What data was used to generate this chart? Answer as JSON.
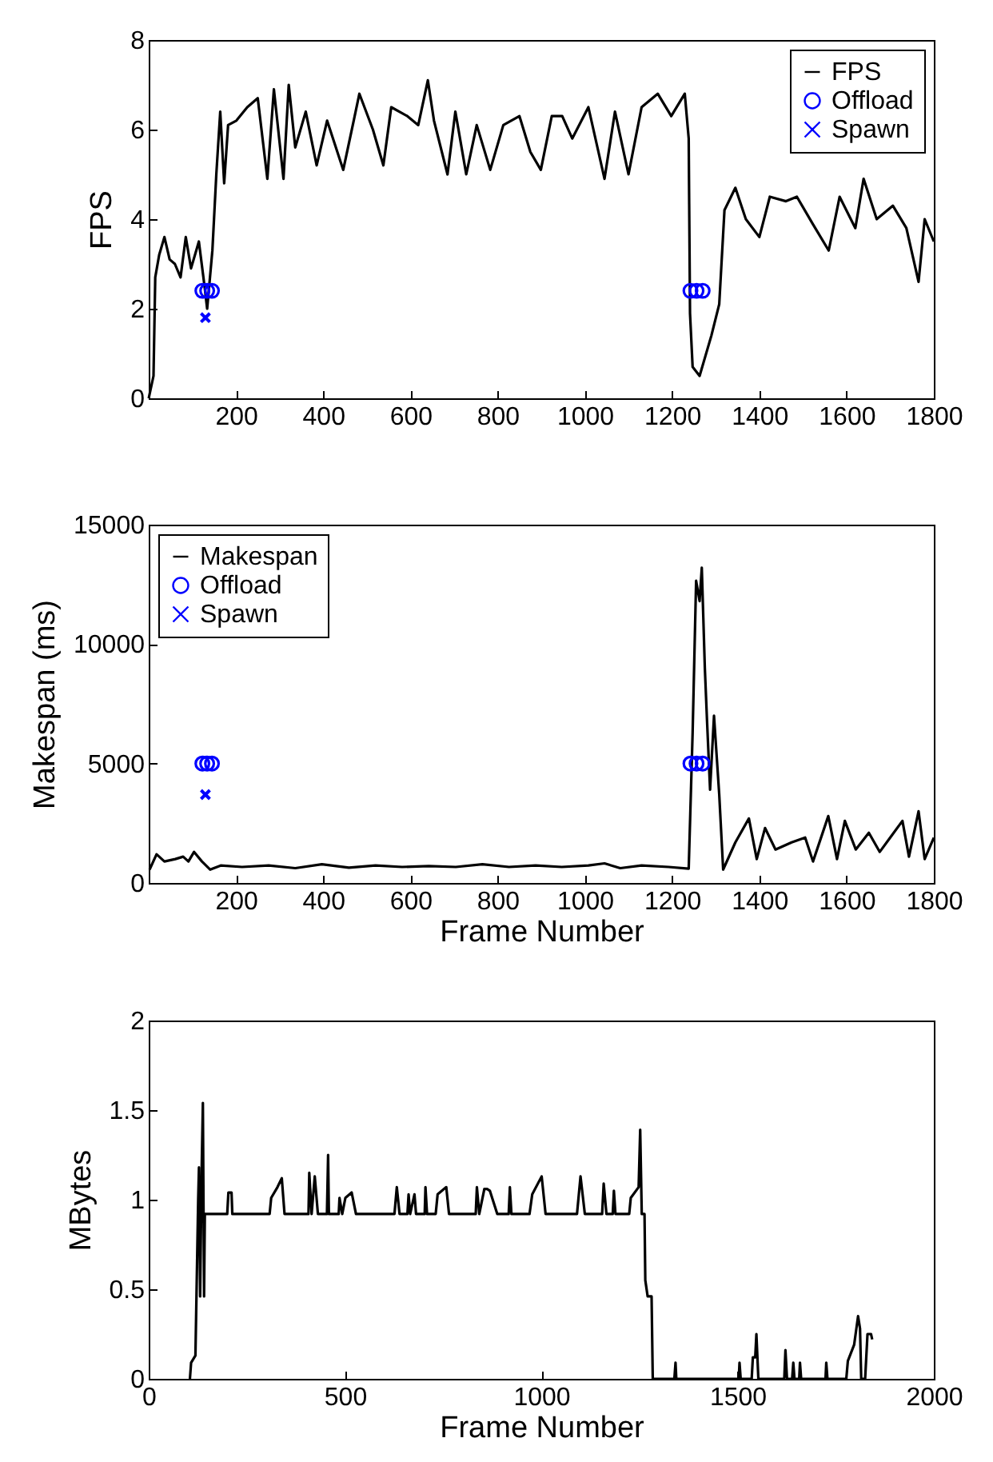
{
  "chart_data": [
    {
      "type": "line",
      "ylabel": "FPS",
      "xlim": [
        0,
        1800
      ],
      "xticks": [
        200,
        400,
        600,
        800,
        1000,
        1200,
        1400,
        1600,
        1800
      ],
      "ylim": [
        0,
        8
      ],
      "yticks": [
        0,
        2,
        4,
        6,
        8
      ],
      "legend": "top right",
      "grid": false,
      "series": [
        {
          "name": "FPS",
          "color": "#000000",
          "type": "line",
          "marker": "none",
          "x": [
            0,
            11,
            15,
            24,
            36,
            48,
            60,
            73,
            85,
            97,
            115,
            128,
            134,
            146,
            155,
            164,
            173,
            182,
            201,
            226,
            250,
            272,
            287,
            309,
            321,
            336,
            360,
            385,
            409,
            446,
            470,
            483,
            514,
            538,
            556,
            593,
            618,
            640,
            654,
            685,
            703,
            728,
            752,
            783,
            813,
            850,
            875,
            899,
            924,
            948,
            971,
            1008,
            1045,
            1069,
            1100,
            1130,
            1167,
            1198,
            1229,
            1238,
            1241,
            1247,
            1263,
            1290,
            1308,
            1320,
            1345,
            1369,
            1400,
            1424,
            1461,
            1486,
            1522,
            1559,
            1584,
            1620,
            1639,
            1669,
            1706,
            1737,
            1765,
            1779,
            1800
          ],
          "values": [
            0,
            0.5,
            2.7,
            3.2,
            3.6,
            3.1,
            3.0,
            2.7,
            3.6,
            2.9,
            3.5,
            2.5,
            2.0,
            3.3,
            5.0,
            6.4,
            4.8,
            6.1,
            6.2,
            6.5,
            6.7,
            4.9,
            6.9,
            4.9,
            7.0,
            5.6,
            6.4,
            5.2,
            6.2,
            5.1,
            6.2,
            6.8,
            6.0,
            5.2,
            6.5,
            6.3,
            6.1,
            7.1,
            6.2,
            5.0,
            6.4,
            5.0,
            6.1,
            5.1,
            6.1,
            6.3,
            5.5,
            5.1,
            6.3,
            6.3,
            5.8,
            6.5,
            4.9,
            6.4,
            5.0,
            6.5,
            6.8,
            6.3,
            6.8,
            5.8,
            1.9,
            0.7,
            0.5,
            1.4,
            2.1,
            4.2,
            4.7,
            4.0,
            3.6,
            4.5,
            4.4,
            4.5,
            3.9,
            3.3,
            4.5,
            3.8,
            4.9,
            4.0,
            4.3,
            3.8,
            2.6,
            4.0,
            3.5
          ]
        },
        {
          "name": "Offload",
          "color": "#0000ff",
          "type": "scatter",
          "marker": "circle",
          "x": [
            123,
            134,
            145,
            1242,
            1256,
            1270
          ],
          "values": [
            2.4,
            2.4,
            2.4,
            2.4,
            2.4,
            2.4
          ]
        },
        {
          "name": "Spawn",
          "color": "#0000ff",
          "type": "scatter",
          "marker": "cross",
          "x": [
            130
          ],
          "values": [
            1.8
          ]
        }
      ]
    },
    {
      "type": "line",
      "ylabel": "Makespan (ms)",
      "xlabel": "Frame Number",
      "xlim": [
        0,
        1800
      ],
      "xticks": [
        200,
        400,
        600,
        800,
        1000,
        1200,
        1400,
        1600,
        1800
      ],
      "ylim": [
        0,
        15000
      ],
      "yticks": [
        0,
        5000,
        10000,
        15000
      ],
      "legend": "top left",
      "grid": false,
      "series": [
        {
          "name": "Makespan",
          "color": "#000000",
          "type": "line",
          "marker": "none",
          "x": [
            2,
            18,
            36,
            61,
            79,
            91,
            104,
            122,
            141,
            165,
            214,
            275,
            336,
            397,
            459,
            520,
            581,
            642,
            704,
            765,
            826,
            887,
            947,
            1008,
            1045,
            1081,
            1130,
            1192,
            1238,
            1247,
            1255,
            1263,
            1268,
            1275,
            1280,
            1287,
            1296,
            1308,
            1317,
            1345,
            1376,
            1394,
            1413,
            1437,
            1474,
            1505,
            1523,
            1558,
            1578,
            1596,
            1621,
            1651,
            1676,
            1700,
            1728,
            1743,
            1765,
            1779,
            1800
          ],
          "values": [
            560,
            1200,
            900,
            1000,
            1100,
            900,
            1300,
            900,
            560,
            730,
            670,
            730,
            620,
            780,
            640,
            730,
            670,
            710,
            670,
            780,
            670,
            730,
            670,
            730,
            820,
            620,
            730,
            670,
            600,
            6300,
            12650,
            11800,
            13200,
            9000,
            6800,
            3900,
            7000,
            3700,
            560,
            1700,
            2700,
            1000,
            2300,
            1400,
            1700,
            1900,
            900,
            2800,
            1000,
            2600,
            1400,
            2100,
            1300,
            1900,
            2600,
            1100,
            3000,
            1000,
            1900
          ]
        },
        {
          "name": "Offload",
          "color": "#0000ff",
          "type": "scatter",
          "marker": "circle",
          "x": [
            123,
            134,
            145,
            1242,
            1256,
            1270
          ],
          "values": [
            5000,
            5000,
            5000,
            5000,
            5000,
            5000
          ]
        },
        {
          "name": "Spawn",
          "color": "#0000ff",
          "type": "scatter",
          "marker": "cross",
          "x": [
            130
          ],
          "values": [
            3700
          ]
        }
      ]
    },
    {
      "type": "line",
      "ylabel": "MBytes",
      "xlabel": "Frame Number",
      "xlim": [
        0,
        2000
      ],
      "xticks": [
        0,
        500,
        1000,
        1500,
        2000
      ],
      "ylim": [
        0,
        2
      ],
      "yticks": [
        0,
        0.5,
        1,
        1.5,
        2
      ],
      "grid": false,
      "series": [
        {
          "color": "#000000",
          "type": "line",
          "marker": "none",
          "x": [
            105,
            108,
            119,
            126,
            128,
            131,
            135,
            138,
            141,
            143,
            200,
            203,
            211,
            213,
            308,
            312,
            328,
            339,
            346,
            407,
            409,
            415,
            423,
            431,
            454,
            457,
            459,
            484,
            486,
            493,
            501,
            517,
            528,
            626,
            632,
            639,
            659,
            662,
            666,
            677,
            681,
            703,
            705,
            709,
            731,
            736,
            758,
            765,
            833,
            836,
            842,
            855,
            862,
            869,
            888,
            917,
            920,
            924,
            970,
            977,
            1001,
            1011,
            1091,
            1100,
            1111,
            1155,
            1159,
            1166,
            1182,
            1185,
            1189,
            1224,
            1228,
            1248,
            1252,
            1256,
            1263,
            1265,
            1271,
            1281,
            1284,
            1339,
            1342,
            1344,
            1503,
            1505,
            1508,
            1536,
            1539,
            1545,
            1548,
            1553,
            1619,
            1622,
            1626,
            1639,
            1642,
            1645,
            1657,
            1659,
            1662,
            1724,
            1726,
            1729,
            1777,
            1781,
            1797,
            1807,
            1812,
            1815,
            1825,
            1831,
            1840,
            1843
          ],
          "values": [
            0,
            0.09,
            0.13,
            1.0,
            1.18,
            0.46,
            1.18,
            1.54,
            0.46,
            0.92,
            0.92,
            1.04,
            1.04,
            0.92,
            0.92,
            1.01,
            1.07,
            1.12,
            0.92,
            0.92,
            1.15,
            0.92,
            1.13,
            0.92,
            0.92,
            1.25,
            0.92,
            0.92,
            1.01,
            0.92,
            1.01,
            1.04,
            0.92,
            0.92,
            1.07,
            0.92,
            0.92,
            1.03,
            0.92,
            1.03,
            0.92,
            0.92,
            1.07,
            0.92,
            0.92,
            1.03,
            1.07,
            0.92,
            0.92,
            1.07,
            0.92,
            1.06,
            1.06,
            1.05,
            0.92,
            0.92,
            1.07,
            0.92,
            0.92,
            1.03,
            1.13,
            0.92,
            0.92,
            1.13,
            0.92,
            0.92,
            1.09,
            0.92,
            0.92,
            1.05,
            0.92,
            0.92,
            1.01,
            1.07,
            1.39,
            0.92,
            0.92,
            0.55,
            0.46,
            0.46,
            0,
            0,
            0.09,
            0,
            0,
            0.09,
            0,
            0,
            0.12,
            0.12,
            0.25,
            0,
            0,
            0.16,
            0,
            0,
            0.09,
            0,
            0,
            0.09,
            0,
            0,
            0.09,
            0,
            0,
            0.1,
            0.19,
            0.35,
            0.28,
            0,
            0,
            0.25,
            0.25,
            0.22
          ]
        }
      ]
    }
  ]
}
